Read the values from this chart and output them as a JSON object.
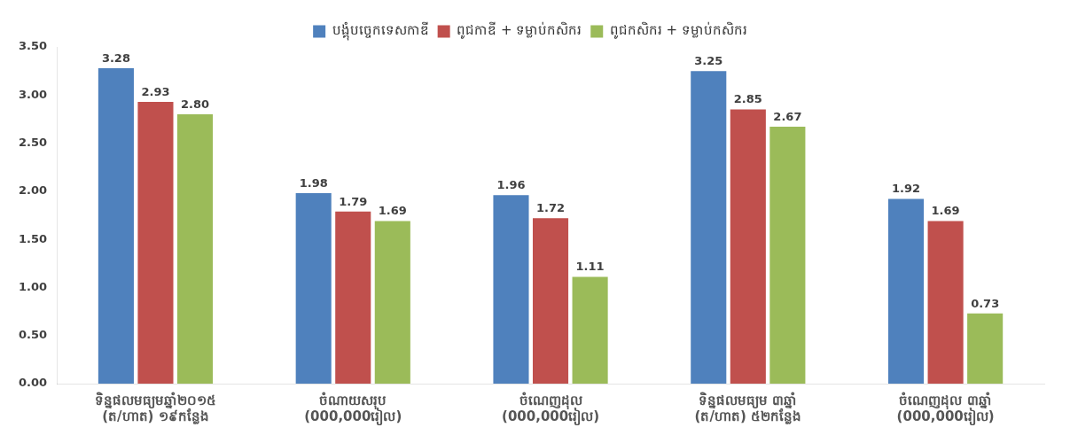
{
  "chart_data": {
    "type": "bar",
    "categories": [
      "ទិន្នផលមធ្យមឆ្នាំ២០១៥\n(ត/ហាត) ១៩កន្លែង",
      "ចំណាយសរុប\n(000,000រៀល)",
      "ចំណេញដុល\n(000,000រៀល)",
      "ទិន្នផលមធ្យម ៣ឆ្នាំ\n(ត/ហាត) ៥២កន្លែង",
      "ចំណេញដុល ៣ឆ្នាំ\n(000,000រៀល)"
    ],
    "series": [
      {
        "name": "បង្គុំបច្ចេកទេសកាឌី",
        "color": "#4f81bd",
        "values": [
          3.28,
          1.98,
          1.96,
          3.25,
          1.92
        ],
        "value_labels": [
          "3.28",
          "1.98",
          "1.96",
          "3.25",
          "1.92"
        ]
      },
      {
        "name": "ពូជកាឌី + ទម្លាប់កសិករ",
        "color": "#c0504d",
        "values": [
          2.93,
          1.79,
          1.72,
          2.85,
          1.69
        ],
        "value_labels": [
          "2.93",
          "1.79",
          "1.72",
          "2.85",
          "1.69"
        ]
      },
      {
        "name": "ពូជកសិករ + ទម្លាប់កសិករ",
        "color": "#9bbb59",
        "values": [
          2.8,
          1.69,
          1.11,
          2.67,
          0.73
        ],
        "value_labels": [
          "2.80",
          "1.69",
          "1.11",
          "2.67",
          "0.73"
        ]
      }
    ],
    "ylim": [
      0,
      3.5
    ],
    "yticks": [
      {
        "value": 0,
        "label": "0.00"
      },
      {
        "value": 0.5,
        "label": "0.50"
      },
      {
        "value": 1,
        "label": "1.00"
      },
      {
        "value": 1.5,
        "label": "1.50"
      },
      {
        "value": 2,
        "label": "2.00"
      },
      {
        "value": 2.5,
        "label": "2.50"
      },
      {
        "value": 3,
        "label": "3.00"
      },
      {
        "value": 3.5,
        "label": "3.50"
      }
    ],
    "grid": false,
    "legend": "top"
  }
}
